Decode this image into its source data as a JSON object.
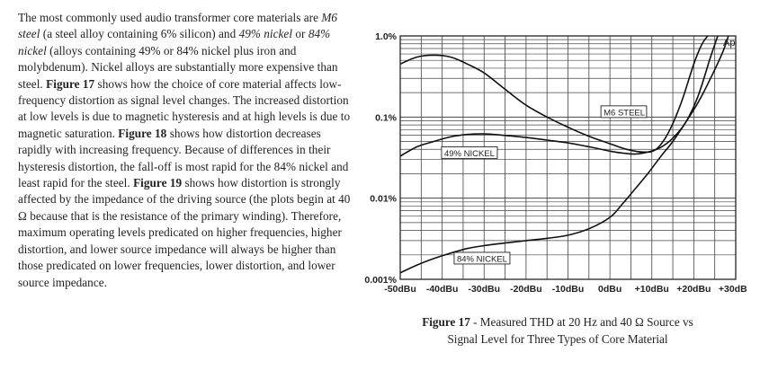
{
  "body_text": [
    {
      "t": "The most commonly used audio transformer core materials are "
    },
    {
      "t": "M6 steel",
      "style": "em"
    },
    {
      "t": " (a steel alloy containing 6% silicon) and "
    },
    {
      "t": "49% nickel",
      "style": "em"
    },
    {
      "t": " or "
    },
    {
      "t": "84% nickel",
      "style": "em"
    },
    {
      "t": " (alloys containing 49% or 84% nickel plus iron and molybdenum). Nickel alloys are substantially more expensive than steel. "
    },
    {
      "t": "Figure 17",
      "style": "b"
    },
    {
      "t": " shows how the choice of core material affects low-frequency distortion as signal level changes. The increased distortion at low levels is due to magnetic hysteresis and at high levels is due to magnetic saturation. "
    },
    {
      "t": "Figure 18",
      "style": "b"
    },
    {
      "t": " shows how distortion decreases rapidly with increasing frequency. Because of differences in their hysteresis distortion, the fall-off is most rapid for the 84% nickel and least rapid for the steel. "
    },
    {
      "t": "Figure 19",
      "style": "b"
    },
    {
      "t": " shows how distortion is strongly affected by the impedance of the driving source (the plots begin at 40 Ω because that is the resistance of the primary winding). Therefore, maximum operating levels predicated on higher frequencies, higher distortion, and lower source impedance will always be higher than those predicated on lower frequencies, lower distortion, and lower source impedance."
    }
  ],
  "caption": {
    "label": "Figure 17",
    "line1": " - Measured THD at 20 Hz and 40 Ω Source vs",
    "line2": "Signal Level for Three Types of Core Material"
  },
  "chart_data": {
    "type": "line",
    "title": "",
    "xlabel": "",
    "ylabel": "",
    "x_unit": "dBu",
    "y_unit": "%",
    "y_scale": "log",
    "xlim": [
      -50,
      30
    ],
    "ylim": [
      0.001,
      1.0
    ],
    "grid": true,
    "x_ticks": [
      "-50dBu",
      "-40dBu",
      "-30dBu",
      "-20dBu",
      "-10dBu",
      "0dBu",
      "+10dBu",
      "+20dBu",
      "+30dBu"
    ],
    "x_tick_values": [
      -50,
      -40,
      -30,
      -20,
      -10,
      0,
      10,
      20,
      30
    ],
    "y_ticks": [
      "0.001%",
      "0.01%",
      "0.1%",
      "1.0%"
    ],
    "y_tick_values": [
      0.001,
      0.01,
      0.1,
      1.0
    ],
    "corner_label": "Ap",
    "series": [
      {
        "name": "M6 STEEL",
        "x": [
          -50,
          -46,
          -42,
          -38,
          -34,
          -30,
          -25,
          -20,
          -15,
          -10,
          -5,
          0,
          4,
          8,
          11,
          14,
          17,
          20,
          22,
          24
        ],
        "y": [
          0.45,
          0.55,
          0.58,
          0.55,
          0.45,
          0.35,
          0.22,
          0.14,
          0.1,
          0.075,
          0.058,
          0.047,
          0.04,
          0.037,
          0.04,
          0.065,
          0.15,
          0.45,
          0.8,
          1.1
        ]
      },
      {
        "name": "49% NICKEL",
        "x": [
          -50,
          -46,
          -42,
          -38,
          -34,
          -30,
          -26,
          -20,
          -15,
          -10,
          -5,
          0,
          3,
          6,
          9,
          12,
          15,
          18,
          21,
          24,
          26
        ],
        "y": [
          0.033,
          0.043,
          0.05,
          0.057,
          0.061,
          0.062,
          0.06,
          0.056,
          0.052,
          0.048,
          0.043,
          0.038,
          0.036,
          0.035,
          0.037,
          0.042,
          0.055,
          0.085,
          0.18,
          0.55,
          1.1
        ]
      },
      {
        "name": "84% NICKEL",
        "x": [
          -50,
          -46,
          -42,
          -38,
          -34,
          -30,
          -25,
          -20,
          -15,
          -10,
          -5,
          0,
          3,
          6,
          9,
          12,
          15,
          18,
          21,
          24,
          27,
          28.5
        ],
        "y": [
          0.0012,
          0.0015,
          0.0018,
          0.0021,
          0.0024,
          0.0026,
          0.0028,
          0.003,
          0.0032,
          0.0035,
          0.0042,
          0.0058,
          0.0085,
          0.013,
          0.02,
          0.032,
          0.05,
          0.085,
          0.15,
          0.3,
          0.65,
          1.1
        ]
      }
    ]
  },
  "colors": {
    "text": "#222222",
    "grid": "#444444",
    "curve": "#111111"
  }
}
